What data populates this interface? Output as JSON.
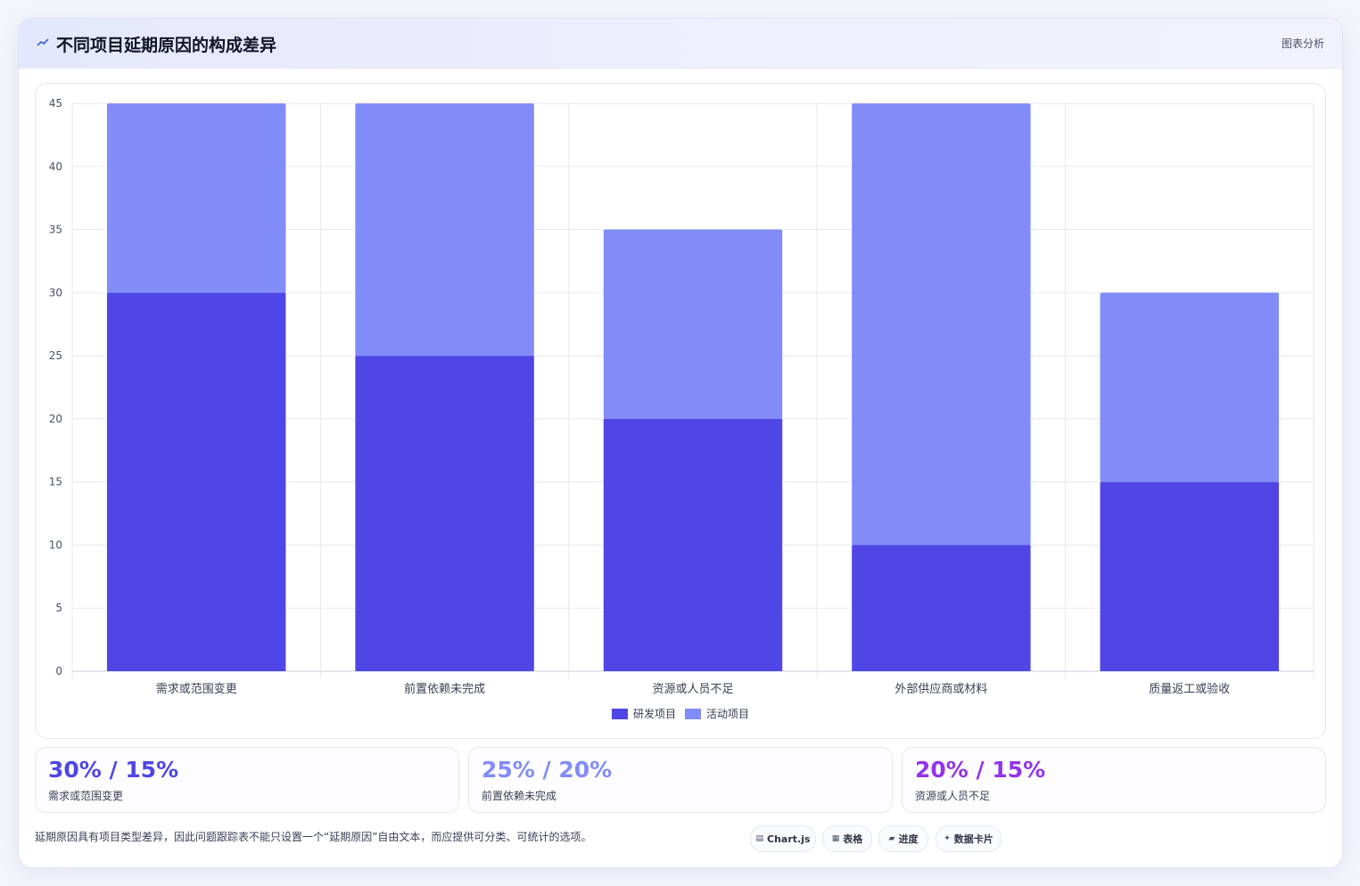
{
  "header": {
    "title": "不同项目延期原因的构成差异",
    "tag": "图表分析"
  },
  "colors": {
    "series_rd": "#4f46e5",
    "series_activity": "#818cf8",
    "accent_purple": "#9333ea"
  },
  "chart_data": {
    "type": "bar",
    "stacked": true,
    "categories": [
      "需求或范围变更",
      "前置依赖未完成",
      "资源或人员不足",
      "外部供应商或材料",
      "质量返工或验收"
    ],
    "series": [
      {
        "name": "研发项目",
        "values": [
          30,
          25,
          20,
          10,
          15
        ],
        "color": "#4f46e5"
      },
      {
        "name": "活动项目",
        "values": [
          15,
          20,
          15,
          35,
          15
        ],
        "color": "#818cf8"
      }
    ],
    "ylim": [
      0,
      45
    ],
    "yticks": [
      "0",
      "5",
      "10",
      "15",
      "20",
      "25",
      "30",
      "35",
      "40",
      "45"
    ],
    "grid": true,
    "legend_position": "bottom"
  },
  "stats": [
    {
      "value": "30% / 15%",
      "label": "需求或范围变更",
      "color": "#4f46e5"
    },
    {
      "value": "25% / 20%",
      "label": "前置依赖未完成",
      "color": "#818cf8"
    },
    {
      "value": "20% / 15%",
      "label": "资源或人员不足",
      "color": "#9333ea"
    }
  ],
  "footnote": "延期原因具有项目类型差异，因此问题跟踪表不能只设置一个“延期原因”自由文本，而应提供可分类、可统计的选项。",
  "chips": [
    {
      "icon": "chart-icon",
      "label": "Chart.js"
    },
    {
      "icon": "table-icon",
      "label": "表格"
    },
    {
      "icon": "progress-icon",
      "label": "进度"
    },
    {
      "icon": "sparkle-icon",
      "label": "数据卡片"
    }
  ]
}
